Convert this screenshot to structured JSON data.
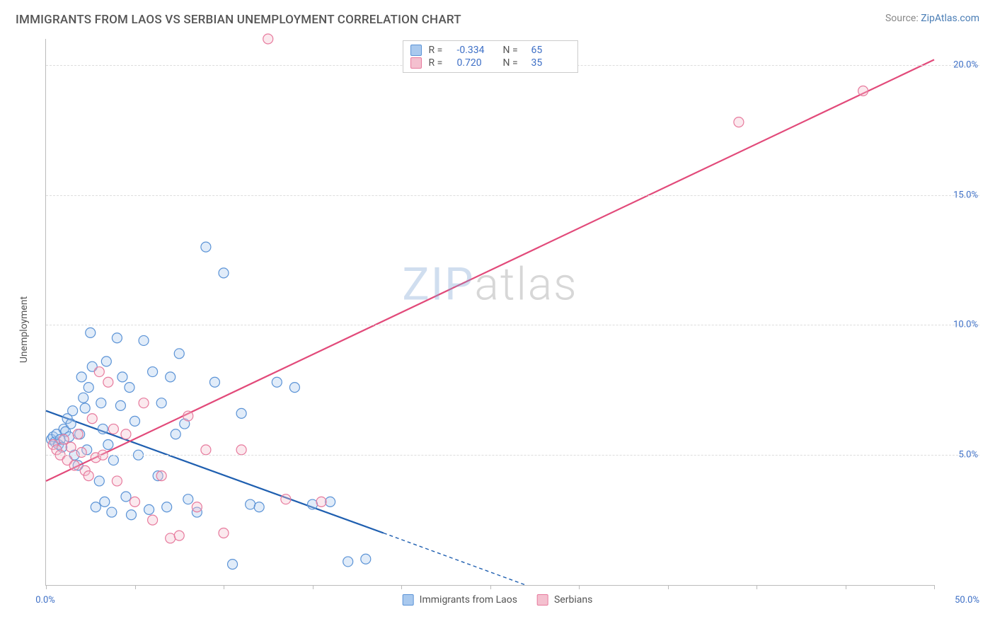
{
  "header": {
    "title": "IMMIGRANTS FROM LAOS VS SERBIAN UNEMPLOYMENT CORRELATION CHART",
    "source_prefix": "Source: ",
    "source_name": "ZipAtlas.com"
  },
  "watermark": {
    "part1": "ZIP",
    "part2": "atlas"
  },
  "chart": {
    "type": "scatter",
    "y_axis_title": "Unemployment",
    "background_color": "#ffffff",
    "grid_color": "#dddddd",
    "axis_color": "#bbbbbb",
    "tick_label_color": "#3d6fc6",
    "tick_fontsize": 13,
    "x_min": 0,
    "x_max": 50,
    "x_tick_step": 5,
    "x_tick_labels": {
      "0": "0.0%",
      "50": "50.0%"
    },
    "y_min": 0,
    "y_max": 21,
    "y_ticks": [
      5,
      10,
      15,
      20
    ],
    "y_tick_labels": [
      "5.0%",
      "10.0%",
      "15.0%",
      "20.0%"
    ],
    "marker_radius": 7,
    "marker_fill_opacity": 0.35,
    "marker_stroke_width": 1.2,
    "trend_line_width": 2.2,
    "series": [
      {
        "name": "Immigrants from Laos",
        "color_fill": "#a9c9ee",
        "color_stroke": "#5b93d6",
        "line_color": "#1f5fb0",
        "R": "-0.334",
        "N": "65",
        "trend": {
          "x1": 0,
          "y1": 6.7,
          "x2_solid": 19,
          "y2_solid": 2.0,
          "x2_dash": 27,
          "y2_dash": 0
        },
        "points": [
          [
            0.3,
            5.6
          ],
          [
            0.4,
            5.7
          ],
          [
            0.5,
            5.5
          ],
          [
            0.6,
            5.8
          ],
          [
            0.7,
            5.4
          ],
          [
            0.8,
            5.6
          ],
          [
            0.9,
            5.3
          ],
          [
            1.0,
            6.0
          ],
          [
            1.1,
            5.9
          ],
          [
            1.2,
            6.4
          ],
          [
            1.3,
            5.7
          ],
          [
            1.4,
            6.2
          ],
          [
            1.5,
            6.7
          ],
          [
            1.6,
            5.0
          ],
          [
            1.8,
            4.6
          ],
          [
            1.9,
            5.8
          ],
          [
            2.0,
            8.0
          ],
          [
            2.1,
            7.2
          ],
          [
            2.2,
            6.8
          ],
          [
            2.3,
            5.2
          ],
          [
            2.4,
            7.6
          ],
          [
            2.5,
            9.7
          ],
          [
            2.6,
            8.4
          ],
          [
            2.8,
            3.0
          ],
          [
            3.0,
            4.0
          ],
          [
            3.1,
            7.0
          ],
          [
            3.2,
            6.0
          ],
          [
            3.3,
            3.2
          ],
          [
            3.4,
            8.6
          ],
          [
            3.5,
            5.4
          ],
          [
            3.7,
            2.8
          ],
          [
            3.8,
            4.8
          ],
          [
            4.0,
            9.5
          ],
          [
            4.2,
            6.9
          ],
          [
            4.3,
            8.0
          ],
          [
            4.5,
            3.4
          ],
          [
            4.7,
            7.6
          ],
          [
            4.8,
            2.7
          ],
          [
            5.0,
            6.3
          ],
          [
            5.2,
            5.0
          ],
          [
            5.5,
            9.4
          ],
          [
            5.8,
            2.9
          ],
          [
            6.0,
            8.2
          ],
          [
            6.3,
            4.2
          ],
          [
            6.5,
            7.0
          ],
          [
            6.8,
            3.0
          ],
          [
            7.0,
            8.0
          ],
          [
            7.3,
            5.8
          ],
          [
            7.5,
            8.9
          ],
          [
            7.8,
            6.2
          ],
          [
            8.0,
            3.3
          ],
          [
            8.5,
            2.8
          ],
          [
            9.0,
            13.0
          ],
          [
            9.5,
            7.8
          ],
          [
            10.0,
            12.0
          ],
          [
            10.5,
            0.8
          ],
          [
            11.0,
            6.6
          ],
          [
            11.5,
            3.1
          ],
          [
            12.0,
            3.0
          ],
          [
            13.0,
            7.8
          ],
          [
            14.0,
            7.6
          ],
          [
            15.0,
            3.1
          ],
          [
            16.0,
            3.2
          ],
          [
            17.0,
            0.9
          ],
          [
            18.0,
            1.0
          ]
        ]
      },
      {
        "name": "Serbians",
        "color_fill": "#f4c0cf",
        "color_stroke": "#e77a9d",
        "line_color": "#e24a7a",
        "R": "0.720",
        "N": "35",
        "trend": {
          "x1": 0,
          "y1": 4.0,
          "x2_solid": 50,
          "y2_solid": 20.2,
          "x2_dash": 50,
          "y2_dash": 20.2
        },
        "points": [
          [
            0.4,
            5.4
          ],
          [
            0.6,
            5.2
          ],
          [
            0.8,
            5.0
          ],
          [
            1.0,
            5.6
          ],
          [
            1.2,
            4.8
          ],
          [
            1.4,
            5.3
          ],
          [
            1.6,
            4.6
          ],
          [
            1.8,
            5.8
          ],
          [
            2.0,
            5.1
          ],
          [
            2.2,
            4.4
          ],
          [
            2.4,
            4.2
          ],
          [
            2.6,
            6.4
          ],
          [
            2.8,
            4.9
          ],
          [
            3.0,
            8.2
          ],
          [
            3.2,
            5.0
          ],
          [
            3.5,
            7.8
          ],
          [
            3.8,
            6.0
          ],
          [
            4.0,
            4.0
          ],
          [
            4.5,
            5.8
          ],
          [
            5.0,
            3.2
          ],
          [
            5.5,
            7.0
          ],
          [
            6.0,
            2.5
          ],
          [
            6.5,
            4.2
          ],
          [
            7.0,
            1.8
          ],
          [
            7.5,
            1.9
          ],
          [
            8.0,
            6.5
          ],
          [
            8.5,
            3.0
          ],
          [
            9.0,
            5.2
          ],
          [
            10.0,
            2.0
          ],
          [
            11.0,
            5.2
          ],
          [
            12.5,
            21.0
          ],
          [
            13.5,
            3.3
          ],
          [
            39.0,
            17.8
          ],
          [
            46.0,
            19.0
          ],
          [
            15.5,
            3.2
          ]
        ]
      }
    ],
    "legend_bottom": [
      {
        "label": "Immigrants from Laos",
        "fill": "#a9c9ee",
        "stroke": "#5b93d6"
      },
      {
        "label": "Serbians",
        "fill": "#f4c0cf",
        "stroke": "#e77a9d"
      }
    ]
  }
}
